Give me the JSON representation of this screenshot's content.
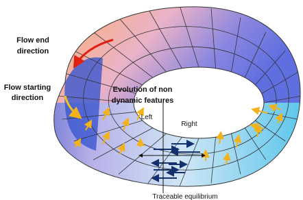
{
  "labels": {
    "flow_end": [
      "Flow end",
      "direction"
    ],
    "flow_start": [
      "Flow starting",
      "direction"
    ],
    "evolution": [
      "Evolution of non",
      "dynamic features"
    ],
    "left": "Left",
    "right": "Right",
    "equilibrium": "Traceable equilibrium"
  }
}
